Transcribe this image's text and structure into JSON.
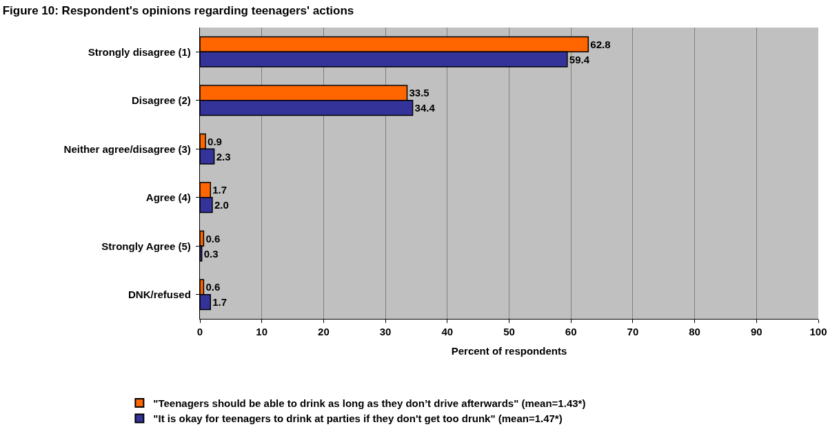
{
  "chart_data": {
    "type": "bar",
    "orientation": "horizontal",
    "title": "Figure 10: Respondent's opinions regarding teenagers' actions",
    "xlabel": "Percent of respondents",
    "categories": [
      "Strongly disagree (1)",
      "Disagree (2)",
      "Neither agree/disagree (3)",
      "Agree (4)",
      "Strongly Agree (5)",
      "DNK/refused"
    ],
    "series": [
      {
        "name": "\"Teenagers should be able to drink as long as they don’t drive afterwards\" (mean=1.43*)",
        "color": "#ff6600",
        "values": [
          62.8,
          33.5,
          0.9,
          1.7,
          0.6,
          0.6
        ],
        "value_labels": [
          "62.8",
          "33.5",
          "0.9",
          "1.7",
          "0.6",
          "0.6"
        ]
      },
      {
        "name": "\"It is okay for teenagers to drink at parties if they don't get too drunk\" (mean=1.47*)",
        "color": "#333399",
        "values": [
          59.4,
          34.4,
          2.3,
          2.0,
          0.3,
          1.7
        ],
        "value_labels": [
          "59.4",
          "34.4",
          "2.3",
          "2.0",
          "0.3",
          "1.7"
        ]
      }
    ],
    "xlim": [
      0,
      100
    ],
    "xticks": [
      0,
      10,
      20,
      30,
      40,
      50,
      60,
      70,
      80,
      90,
      100
    ],
    "grid": "x",
    "legend": "bottom"
  }
}
